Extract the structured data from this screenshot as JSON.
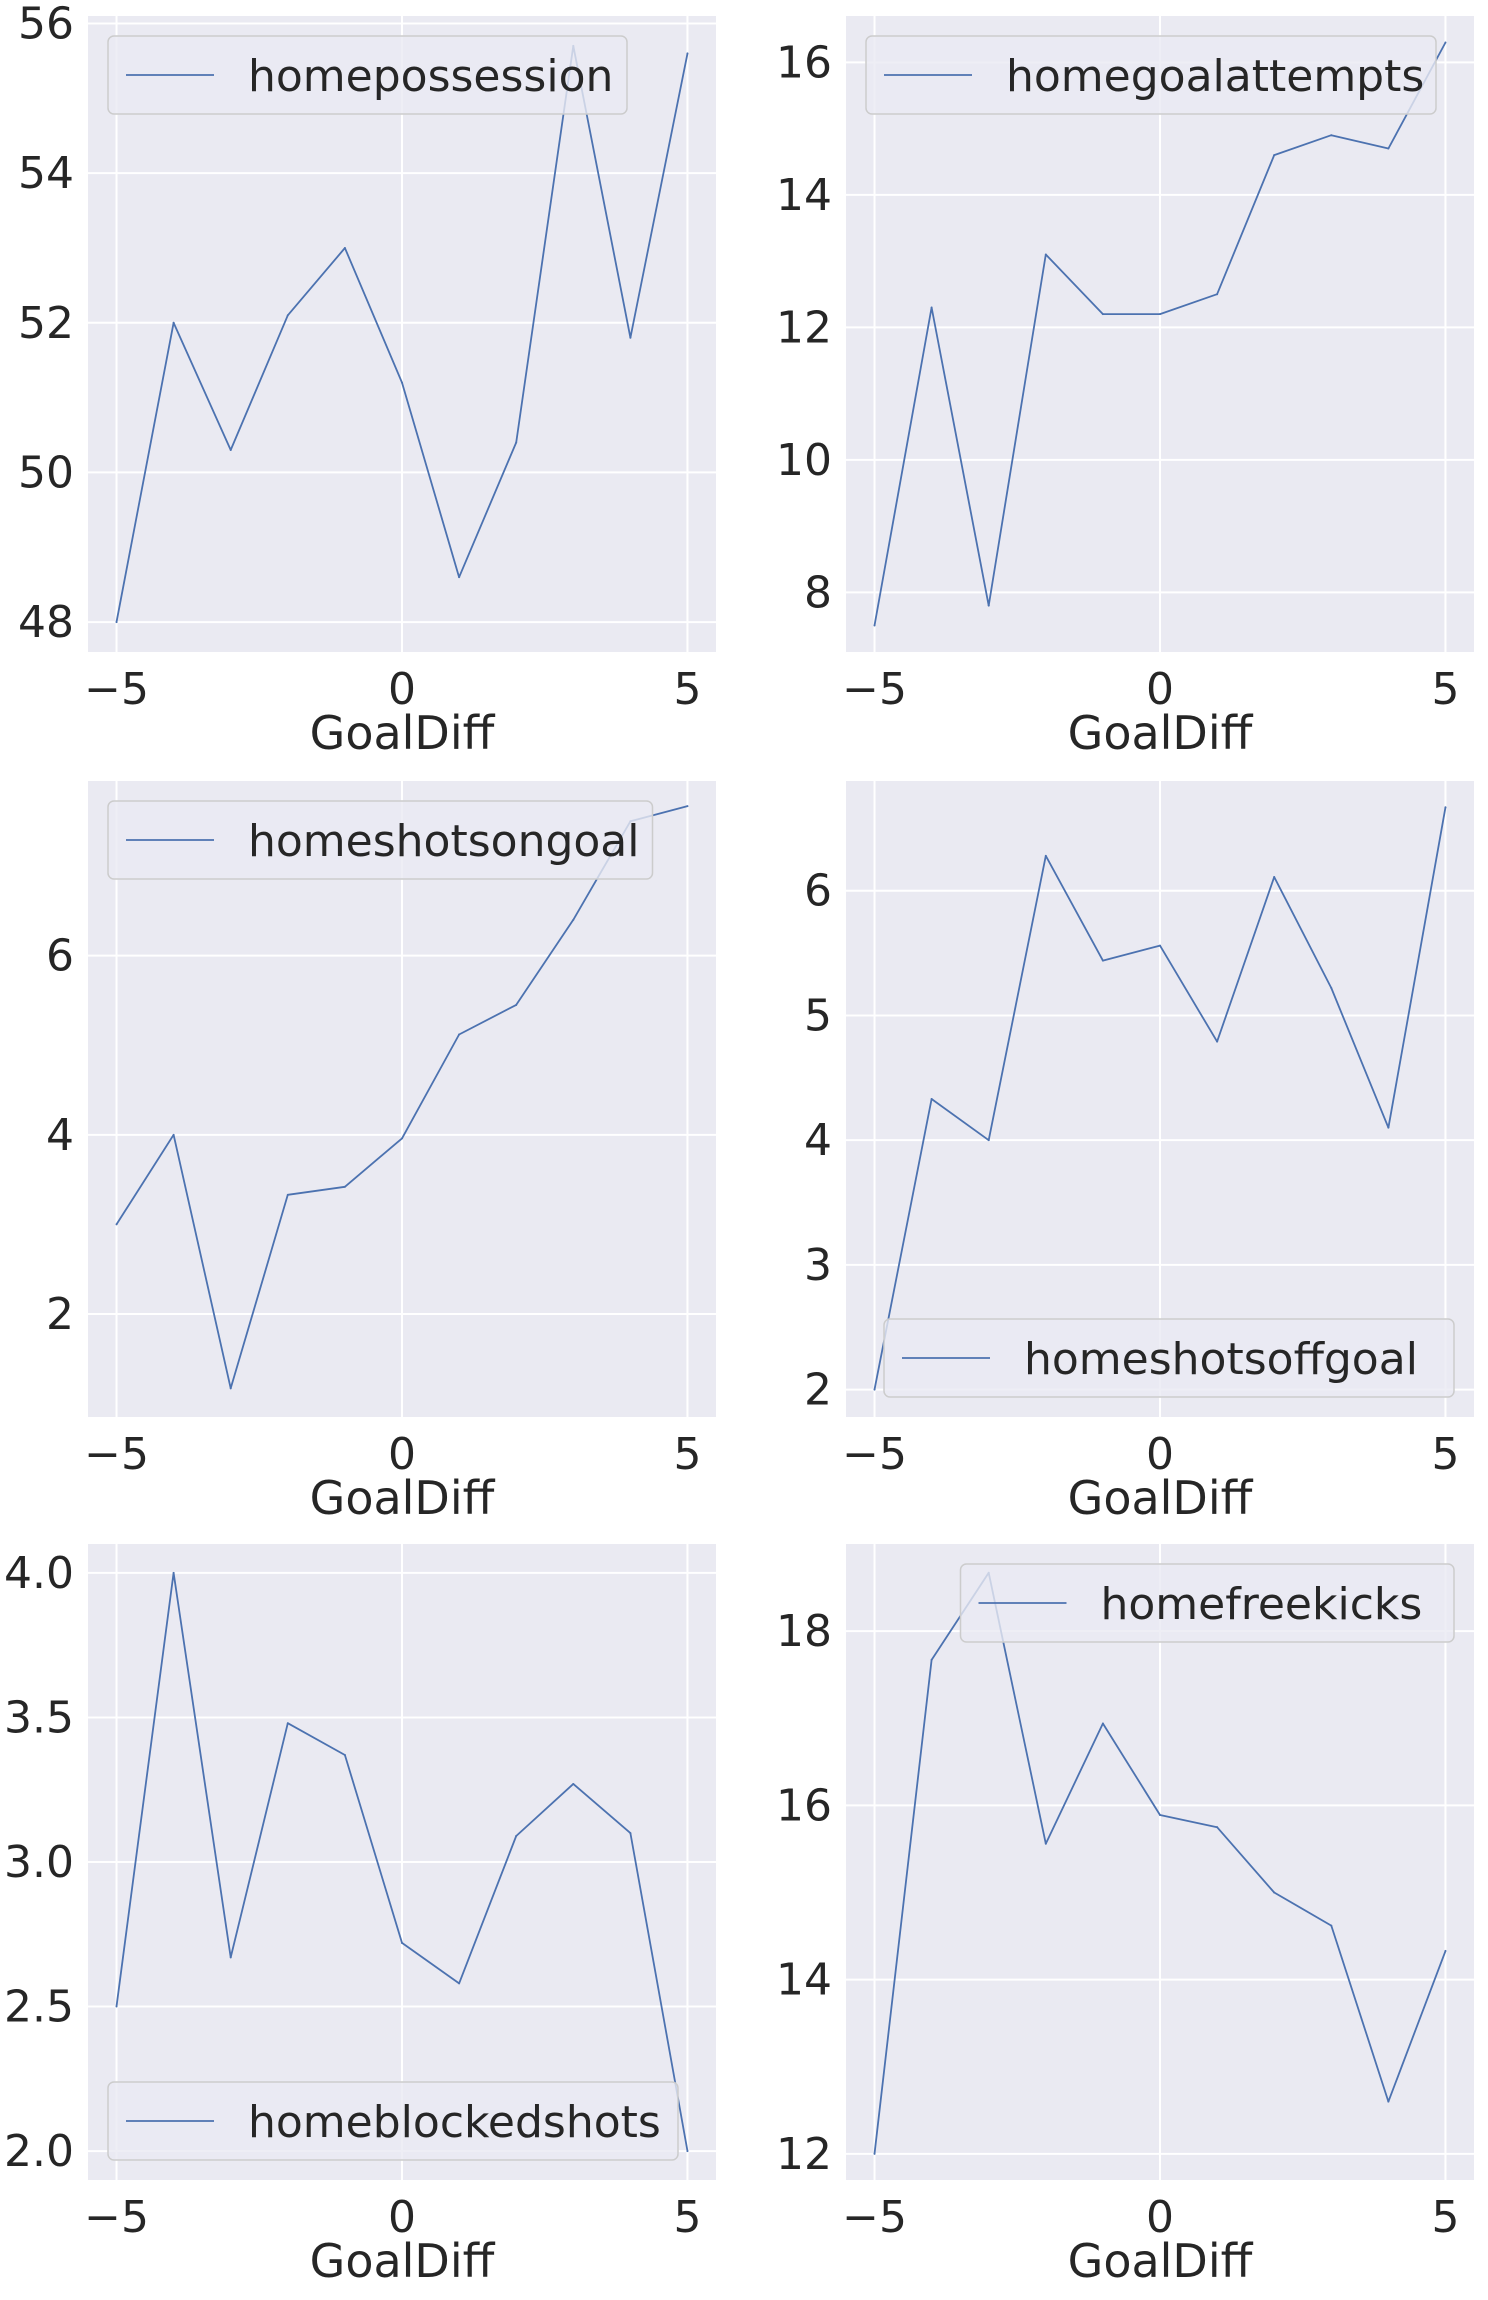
{
  "chart_data": [
    {
      "type": "line",
      "xlabel": "GoalDiff",
      "ylabel": "",
      "x": [
        -5,
        -4,
        -3,
        -2,
        -1,
        0,
        1,
        2,
        3,
        4,
        5
      ],
      "xticks": [
        -5,
        0,
        5
      ],
      "xlim": [
        -5.5,
        5.5
      ],
      "ylim": [
        47.6,
        56.1
      ],
      "yticks": [
        48,
        50,
        52,
        54,
        56
      ],
      "legend_position": "upper-left",
      "grid": true,
      "series": [
        {
          "name": "homepossession",
          "values": [
            48.0,
            52.0,
            50.3,
            52.1,
            53.0,
            51.2,
            48.6,
            50.4,
            55.7,
            51.8,
            55.6
          ]
        }
      ]
    },
    {
      "type": "line",
      "xlabel": "GoalDiff",
      "ylabel": "",
      "x": [
        -5,
        -4,
        -3,
        -2,
        -1,
        0,
        1,
        2,
        3,
        4,
        5
      ],
      "xticks": [
        -5,
        0,
        5
      ],
      "xlim": [
        -5.5,
        5.5
      ],
      "ylim": [
        7.1,
        16.7
      ],
      "yticks": [
        8,
        10,
        12,
        14,
        16
      ],
      "legend_position": "upper-left",
      "grid": true,
      "series": [
        {
          "name": "homegoalattempts",
          "values": [
            7.5,
            12.3,
            7.8,
            13.1,
            12.2,
            12.2,
            12.5,
            14.6,
            14.9,
            14.7,
            16.3
          ]
        }
      ]
    },
    {
      "type": "line",
      "xlabel": "GoalDiff",
      "ylabel": "",
      "x": [
        -5,
        -4,
        -3,
        -2,
        -1,
        0,
        1,
        2,
        3,
        4,
        5
      ],
      "xticks": [
        -5,
        0,
        5
      ],
      "xlim": [
        -5.5,
        5.5
      ],
      "ylim": [
        0.85,
        7.95
      ],
      "yticks": [
        2,
        4,
        6
      ],
      "legend_position": "upper-left",
      "grid": true,
      "series": [
        {
          "name": "homeshotsongoal",
          "values": [
            3.0,
            4.0,
            1.17,
            3.33,
            3.42,
            3.96,
            5.12,
            5.45,
            6.4,
            7.5,
            7.67
          ]
        }
      ]
    },
    {
      "type": "line",
      "xlabel": "GoalDiff",
      "ylabel": "",
      "x": [
        -5,
        -4,
        -3,
        -2,
        -1,
        0,
        1,
        2,
        3,
        4,
        5
      ],
      "xticks": [
        -5,
        0,
        5
      ],
      "xlim": [
        -5.5,
        5.5
      ],
      "ylim": [
        1.78,
        6.88
      ],
      "yticks": [
        2,
        3,
        4,
        5,
        6
      ],
      "legend_position": "lower-right",
      "grid": true,
      "series": [
        {
          "name": "homeshotsoffgoal",
          "values": [
            2.0,
            4.33,
            4.0,
            6.28,
            5.44,
            5.56,
            4.79,
            6.11,
            5.22,
            4.1,
            6.67
          ]
        }
      ]
    },
    {
      "type": "line",
      "xlabel": "GoalDiff",
      "ylabel": "",
      "x": [
        -5,
        -4,
        -3,
        -2,
        -1,
        0,
        1,
        2,
        3,
        4,
        5
      ],
      "xticks": [
        -5,
        0,
        5
      ],
      "xlim": [
        -5.5,
        5.5
      ],
      "ylim": [
        1.9,
        4.1
      ],
      "yticks": [
        2.0,
        2.5,
        3.0,
        3.5,
        4.0
      ],
      "ytick_format": "fixed1",
      "legend_position": "lower-left",
      "grid": true,
      "series": [
        {
          "name": "homeblockedshots",
          "values": [
            2.5,
            4.0,
            2.67,
            3.48,
            3.37,
            2.72,
            2.58,
            3.09,
            3.27,
            3.1,
            2.0
          ]
        }
      ]
    },
    {
      "type": "line",
      "xlabel": "GoalDiff",
      "ylabel": "",
      "x": [
        -5,
        -4,
        -3,
        -2,
        -1,
        0,
        1,
        2,
        3,
        4,
        5
      ],
      "xticks": [
        -5,
        0,
        5
      ],
      "xlim": [
        -5.5,
        5.5
      ],
      "ylim": [
        11.7,
        19.0
      ],
      "yticks": [
        12,
        14,
        16,
        18
      ],
      "legend_position": "upper-right",
      "grid": true,
      "series": [
        {
          "name": "homefreekicks",
          "values": [
            12.0,
            17.67,
            18.67,
            15.56,
            16.94,
            15.89,
            15.75,
            15.0,
            14.62,
            12.6,
            14.33
          ]
        }
      ]
    }
  ],
  "colors": {
    "axes_background": "#eaeaf2",
    "grid": "#ffffff",
    "line": "#4c72b0",
    "text": "#262626",
    "legend_border": "#cccccc"
  }
}
